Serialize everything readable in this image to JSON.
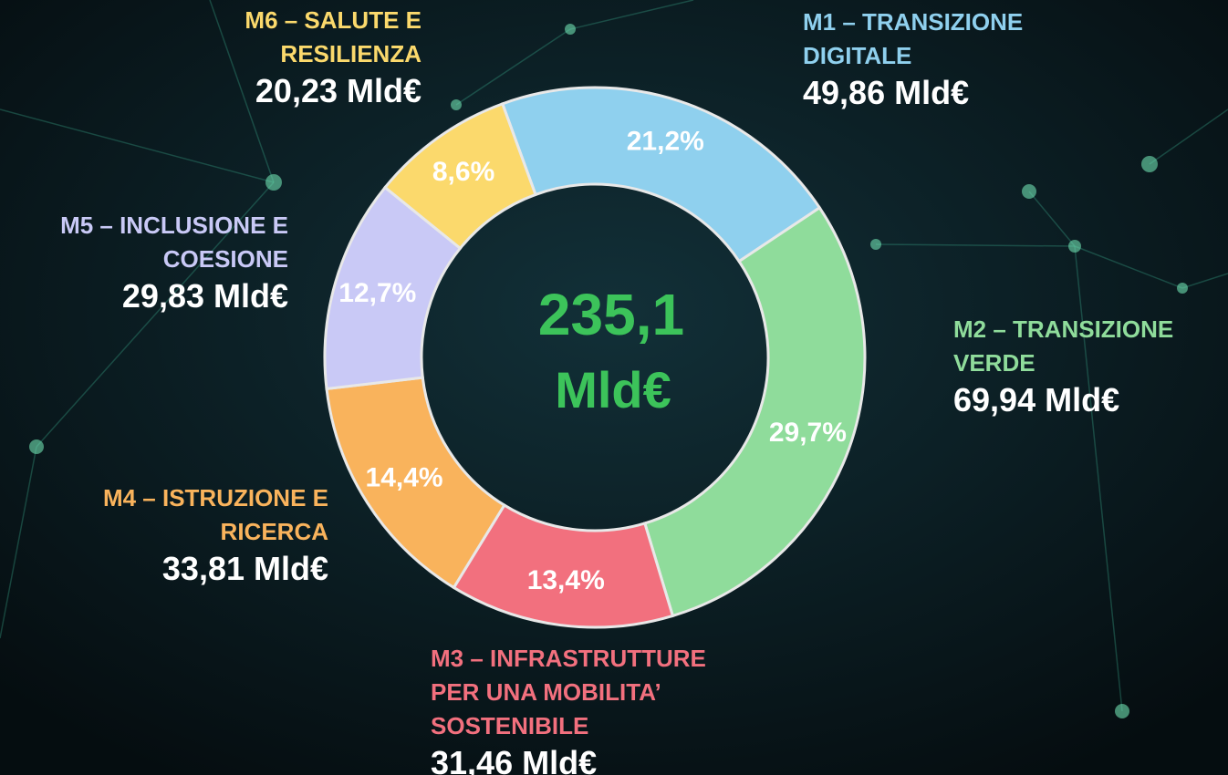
{
  "chart_data": {
    "type": "donut",
    "categories": [
      "M1 – TRANSIZIONE DIGITALE",
      "M2 – TRANSIZIONE VERDE",
      "M3 – INFRASTRUTTURE PER UNA MOBILITA’ SOSTENIBILE",
      "M4 – ISTRUZIONE E RICERCA",
      "M5 – INCLUSIONE E COESIONE",
      "M6 – SALUTE E RESILIENZA"
    ],
    "values": [
      21.2,
      29.7,
      13.4,
      14.4,
      12.7,
      8.6
    ],
    "value_labels": [
      "21,2%",
      "29,7%",
      "13,4%",
      "14,4%",
      "12,7%",
      "8,6%"
    ],
    "amount_labels": [
      "49,86 Mld€",
      "69,94 Mld€",
      "31,46 Mld€",
      "33,81 Mld€",
      "29,83 Mld€",
      "20,23 Mld€"
    ],
    "colors": [
      "#8fd0ee",
      "#8fdc9b",
      "#f2707e",
      "#f9b35c",
      "#c9c9f6",
      "#fbd96c"
    ],
    "center_label": [
      "235,1",
      "Mld€"
    ]
  }
}
